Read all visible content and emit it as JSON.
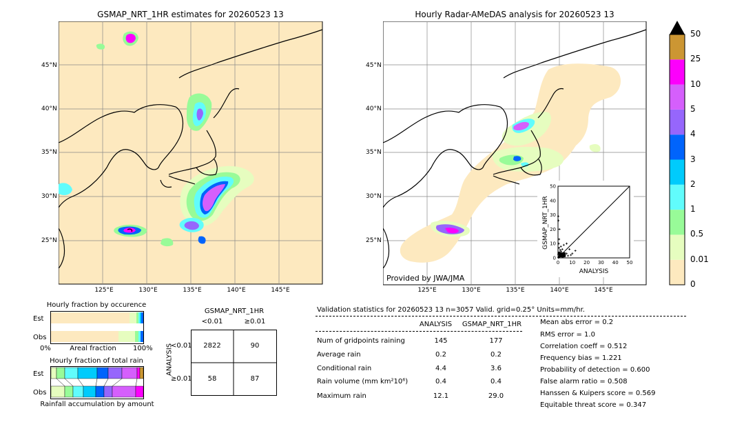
{
  "maps": {
    "left_title": "GSMAP_NRT_1HR estimates for 20260523 13",
    "right_title": "Hourly Radar-AMeDAS analysis for 20260523 13",
    "provided_by": "Provided by JWA/JMA",
    "lat_labels": [
      "45°N",
      "40°N",
      "35°N",
      "30°N",
      "25°N"
    ],
    "lon_labels": [
      "125°E",
      "130°E",
      "135°E",
      "140°E",
      "145°E"
    ],
    "background_color": "#fde9bf",
    "land_outline_color": "#000000"
  },
  "colorbar": {
    "labels": [
      "0",
      "0.01",
      "0.5",
      "1",
      "2",
      "3",
      "4",
      "5",
      "10",
      "25",
      "50"
    ],
    "colors": [
      "#fde9bf",
      "#e6fdbf",
      "#98fb98",
      "#61fcfc",
      "#00cbfc",
      "#0064fc",
      "#9666fc",
      "#d55ffc",
      "#fc00fc",
      "#cc9633"
    ],
    "extend_color": "#000000"
  },
  "fraction_charts": {
    "occurrence_title": "Hourly fraction by occurence",
    "total_title": "Hourly fraction of total rain",
    "footer": "Rainfall accumulation by amount",
    "row_est": "Est",
    "row_obs": "Obs",
    "axis_left": "0%",
    "axis_mid": "Areal fraction",
    "axis_right": "100%"
  },
  "contingency": {
    "title": "GSMAP_NRT_1HR",
    "col_lt": "<0.01",
    "col_ge": "≥0.01",
    "row_axis": "ANALYSIS",
    "row_lt": "<0.01",
    "row_ge": "≥0.01",
    "cells": [
      "2822",
      "90",
      "58",
      "87"
    ]
  },
  "validation": {
    "header": "Validation statistics for 20260523 13  n=3057 Valid. grid=0.25° Units=mm/hr.",
    "col_analysis": "ANALYSIS",
    "col_gsmap": "GSMAP_NRT_1HR",
    "rows": [
      {
        "label": "Num of gridpoints raining",
        "analysis": "145",
        "gsmap": "177"
      },
      {
        "label": "Average rain",
        "analysis": "0.2",
        "gsmap": "0.2"
      },
      {
        "label": "Conditional rain",
        "analysis": "4.4",
        "gsmap": "3.6"
      },
      {
        "label": "Rain volume (mm km²10⁶)",
        "analysis": "0.4",
        "gsmap": "0.4"
      },
      {
        "label": "Maximum rain",
        "analysis": "12.1",
        "gsmap": "29.0"
      }
    ],
    "scores": [
      "Mean abs error =    0.2",
      "RMS error =    1.0",
      "Correlation coeff =  0.512",
      "Frequency bias =  1.221",
      "Probability of detection =  0.600",
      "False alarm ratio =  0.508",
      "Hanssen & Kuipers score =  0.569",
      "Equitable threat score =  0.347"
    ]
  },
  "chart_data": {
    "type": "scatter",
    "xlabel": "ANALYSIS",
    "ylabel": "GSMAP_NRT_1HR",
    "xlim": [
      0,
      50
    ],
    "ylim": [
      0,
      50
    ],
    "ticks": [
      "0",
      "10",
      "20",
      "30",
      "40",
      "50"
    ],
    "points": [
      [
        0.3,
        0.2
      ],
      [
        0.5,
        1.0
      ],
      [
        0.8,
        0.4
      ],
      [
        1.2,
        2.1
      ],
      [
        1.5,
        0.8
      ],
      [
        2.0,
        3.0
      ],
      [
        2.5,
        1.2
      ],
      [
        3.0,
        0.5
      ],
      [
        0.2,
        2.5
      ],
      [
        0.4,
        3.5
      ],
      [
        1.0,
        4.0
      ],
      [
        3.5,
        2.2
      ],
      [
        4.0,
        1.0
      ],
      [
        5.0,
        2.0
      ],
      [
        6.0,
        3.0
      ],
      [
        7.0,
        1.5
      ],
      [
        8.0,
        6.0
      ],
      [
        9.0,
        2.0
      ],
      [
        10.0,
        3.0
      ],
      [
        12.1,
        5.0
      ],
      [
        0.5,
        10.0
      ],
      [
        0.8,
        13.0
      ],
      [
        1.0,
        20.0
      ],
      [
        0.3,
        26.0
      ],
      [
        2.0,
        8.0
      ],
      [
        3.0,
        6.0
      ],
      [
        4.0,
        9.0
      ],
      [
        0.2,
        29.0
      ],
      [
        6.0,
        10.0
      ],
      [
        1.5,
        5.5
      ],
      [
        2.2,
        4.5
      ],
      [
        0.7,
        7.0
      ]
    ]
  }
}
